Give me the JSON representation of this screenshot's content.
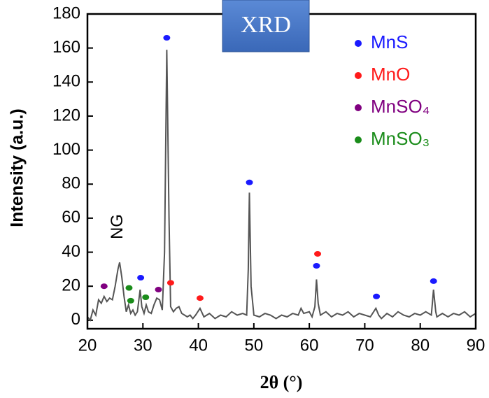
{
  "chart_data": {
    "type": "line",
    "badge": "XRD",
    "xlabel": "2θ (°)",
    "ylabel": "Intensity (a.u.)",
    "xlim": [
      20,
      90
    ],
    "ylim": [
      -5,
      180
    ],
    "xticks": [
      20,
      30,
      40,
      50,
      60,
      70,
      80,
      90
    ],
    "yticks": [
      0,
      20,
      40,
      60,
      80,
      100,
      120,
      140,
      160,
      180
    ],
    "color": "#555555",
    "legend": "upper right",
    "annotations": [
      {
        "text": "NG"
      }
    ],
    "x": [
      20,
      20.5,
      21,
      21.5,
      22,
      22.5,
      23,
      23.5,
      24,
      24.5,
      25,
      25.5,
      25.8,
      26.2,
      26.6,
      27,
      27.4,
      27.8,
      28.2,
      28.6,
      29,
      29.5,
      29.8,
      30.2,
      30.6,
      31,
      31.5,
      32,
      32.5,
      33,
      33.5,
      33.9,
      34.3,
      34.7,
      35,
      35.5,
      36,
      36.5,
      37,
      37.5,
      38,
      38.5,
      39,
      39.5,
      40.3,
      41,
      42,
      43,
      44,
      45,
      46,
      47,
      48,
      48.7,
      49,
      49.2,
      49.5,
      50,
      51,
      52,
      53,
      54,
      55,
      56,
      57,
      58,
      58.5,
      59,
      60,
      60.5,
      61,
      61.3,
      61.6,
      62,
      63,
      64,
      65,
      66,
      67,
      68,
      69,
      70,
      71,
      72,
      72.5,
      73,
      74,
      75,
      76,
      77,
      78,
      79,
      80,
      81,
      82,
      82.4,
      82.8,
      83,
      84,
      85,
      86,
      87,
      88,
      89,
      90
    ],
    "values": [
      2,
      0,
      6,
      3,
      12,
      10,
      14,
      11,
      13,
      12,
      20,
      30,
      34,
      25,
      14,
      5,
      9,
      4,
      6,
      3,
      5,
      18,
      8,
      4,
      9,
      5,
      4,
      9,
      13,
      12,
      6,
      40,
      159,
      60,
      8,
      5,
      7,
      8,
      4,
      3,
      2,
      3,
      1,
      3,
      7,
      2,
      4,
      1,
      3,
      2,
      5,
      3,
      4,
      3,
      30,
      75,
      20,
      3,
      2,
      4,
      3,
      1,
      3,
      2,
      4,
      3,
      7,
      4,
      5,
      2,
      8,
      24,
      10,
      3,
      5,
      2,
      4,
      3,
      5,
      2,
      4,
      3,
      2,
      7,
      3,
      1,
      4,
      2,
      5,
      3,
      2,
      4,
      3,
      5,
      3,
      18,
      5,
      2,
      4,
      2,
      4,
      3,
      5,
      2,
      4
    ],
    "markers": [
      {
        "name": "MnS",
        "color": "#1a1aff",
        "x": [
          34.3,
          29.6,
          49.2,
          61.3,
          72.1,
          82.4
        ],
        "values": [
          166,
          25,
          81,
          32,
          14,
          23
        ]
      },
      {
        "name": "MnO",
        "color": "#ff1a1a",
        "x": [
          35,
          40.3,
          61.5
        ],
        "values": [
          22,
          13,
          39
        ]
      },
      {
        "name": "MnSO₄",
        "color": "#800080",
        "x": [
          23,
          32.8
        ],
        "values": [
          20,
          18
        ]
      },
      {
        "name": "MnSO₃",
        "color": "#1a8c1a",
        "x": [
          27.5,
          27.8,
          30.5
        ],
        "values": [
          19,
          11.5,
          13.5
        ]
      }
    ]
  }
}
